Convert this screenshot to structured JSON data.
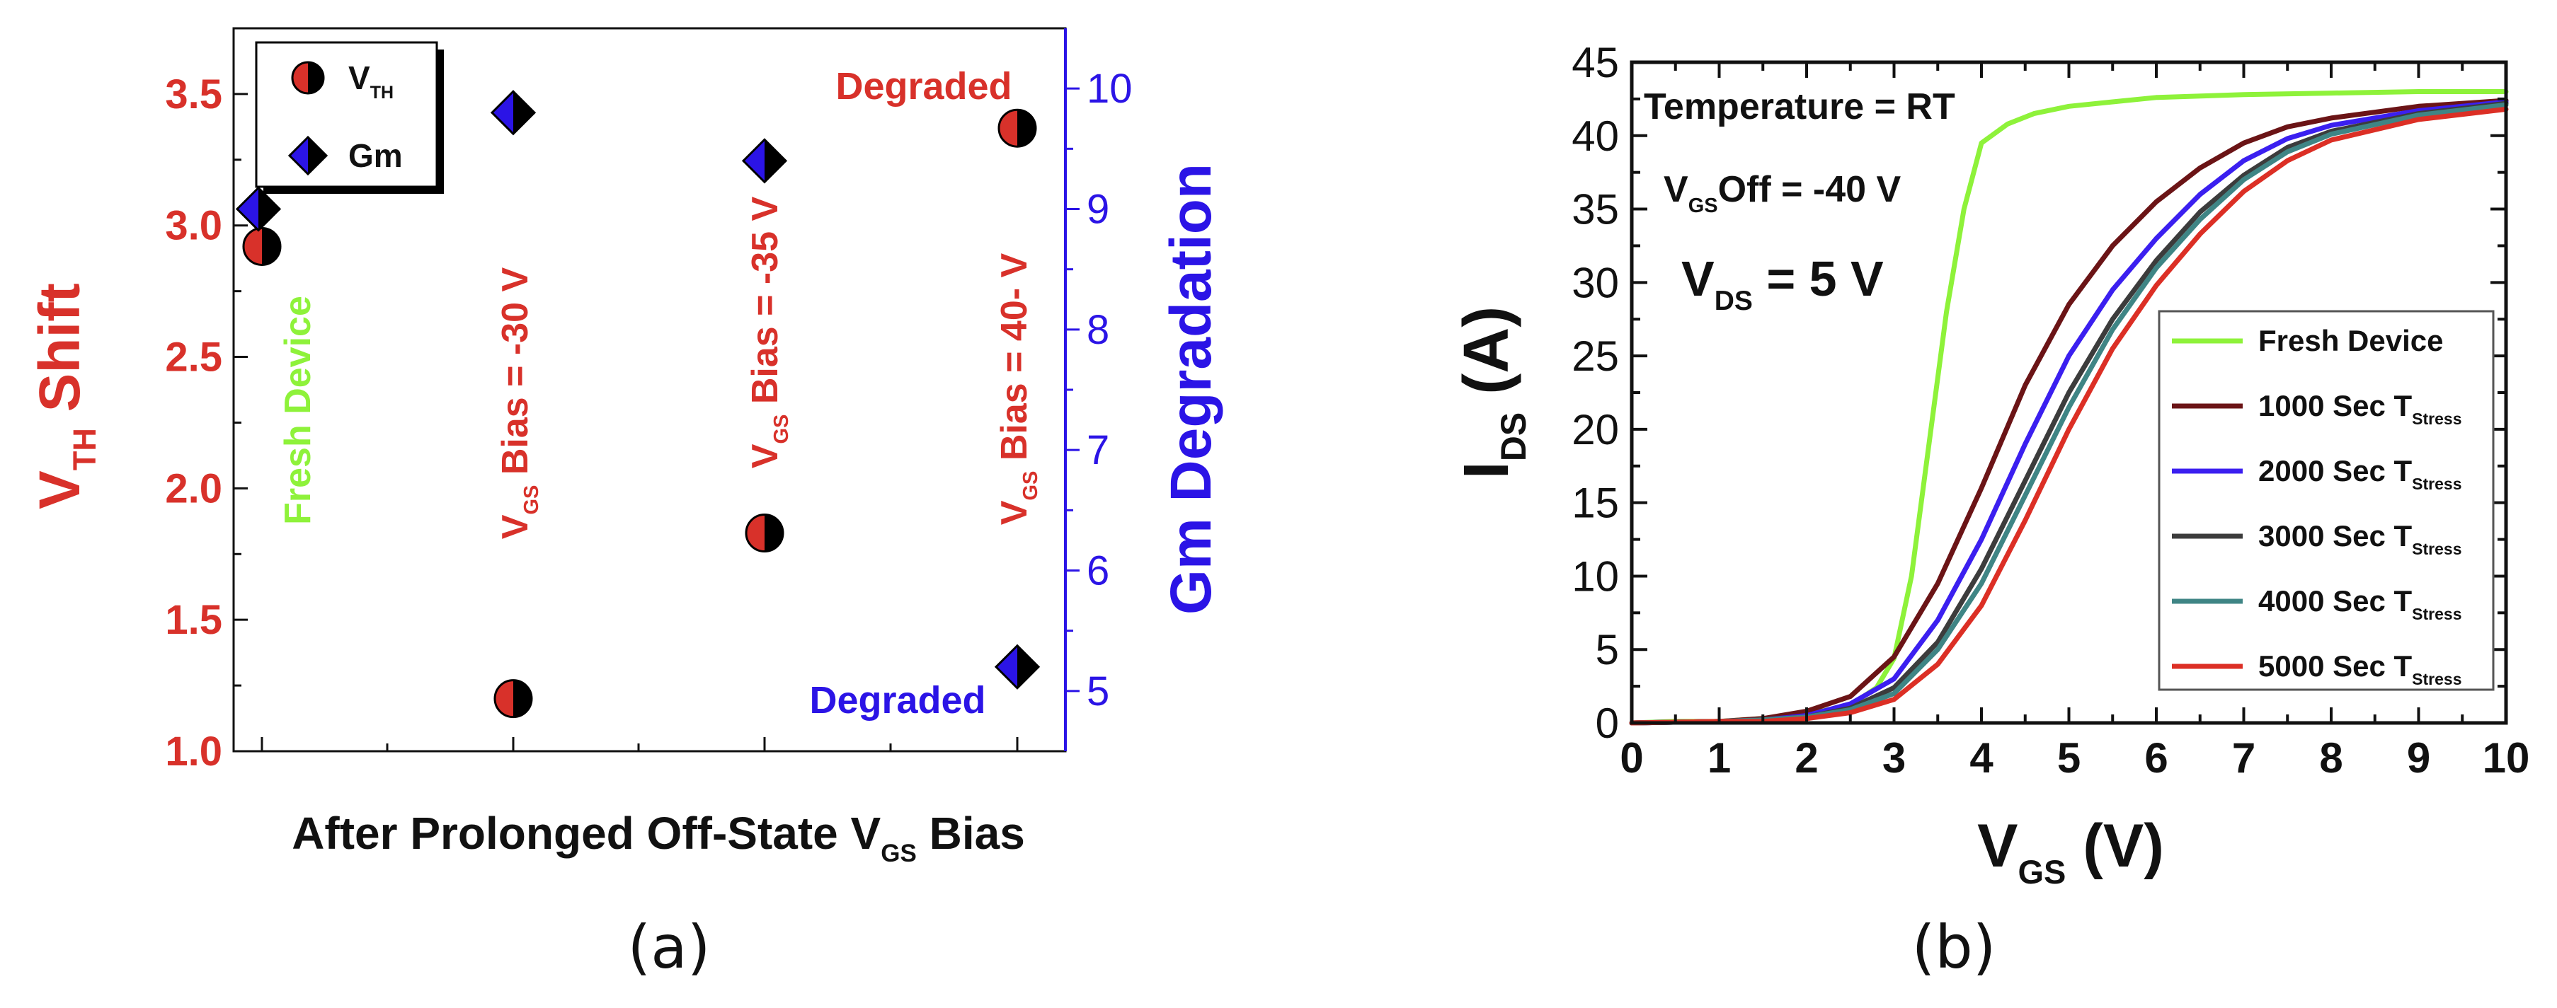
{
  "colors": {
    "red": "#d8312a",
    "blue": "#2b14e6",
    "green": "#8ef23a",
    "ink": "#111111",
    "fresh": "#8ef23a",
    "s1000": "#6b1416",
    "s2000": "#3b1ff0",
    "s3000": "#3c3c3c",
    "s4000": "#3f8585",
    "s5000": "#dc2f25"
  },
  "chart_data": [
    {
      "panel_label": "(a)",
      "type": "scatter",
      "xlabel": {
        "main": "After Prolonged Off-State V",
        "sub": "GS",
        "tail": " Bias"
      },
      "ylabel_left": {
        "main": "V",
        "sub": "TH",
        "tail": " Shift"
      },
      "ylabel_right": "Gm Degradation",
      "ylim_left": [
        1.0,
        3.75
      ],
      "ylim_right": [
        4.5,
        10.5
      ],
      "yticks_left": [
        "1.0",
        "1.5",
        "2.0",
        "2.5",
        "3.0",
        "3.5"
      ],
      "yticks_right": [
        "5",
        "6",
        "7",
        "8",
        "9",
        "10"
      ],
      "categories": [
        "Fresh Device",
        "VGS Bias = -30 V",
        "VGS Bias = -35 V",
        "VGS Bias = 40- V"
      ],
      "legend": [
        {
          "name": "V",
          "sub": "TH",
          "marker": "circle"
        },
        {
          "name": "Gm",
          "sub": "",
          "marker": "diamond"
        }
      ],
      "series": [
        {
          "name": "VTH",
          "axis": "left",
          "values": [
            2.92,
            1.2,
            1.83,
            3.37
          ]
        },
        {
          "name": "Gm",
          "axis": "right",
          "values": [
            9.0,
            9.8,
            9.4,
            5.2
          ]
        }
      ],
      "annotations": [
        {
          "text": "Fresh Device",
          "color": "green"
        },
        {
          "text": "V",
          "sub": "GS",
          "tail": " Bias = -30 V",
          "color": "red"
        },
        {
          "text": "V",
          "sub": "GS",
          "tail": " Bias = -35 V",
          "color": "red"
        },
        {
          "text": "V",
          "sub": "GS",
          "tail": " Bias = 40- V",
          "color": "red"
        },
        {
          "text": "Degraded",
          "color": "red"
        },
        {
          "text": "Degraded",
          "color": "blue"
        }
      ]
    },
    {
      "panel_label": "(b)",
      "type": "line",
      "xlabel": {
        "main": "V",
        "sub": "GS",
        "tail": " (V)"
      },
      "ylabel": {
        "main": "I",
        "sub": "DS",
        "tail": " (A)"
      },
      "xlim": [
        0,
        10
      ],
      "ylim": [
        0,
        45
      ],
      "xticks": [
        "0",
        "1",
        "2",
        "3",
        "4",
        "5",
        "6",
        "7",
        "8",
        "9",
        "10"
      ],
      "yticks": [
        "0",
        "5",
        "10",
        "15",
        "20",
        "25",
        "30",
        "35",
        "40",
        "45"
      ],
      "annotations": [
        {
          "text": "Temperature = RT"
        },
        {
          "text": "V",
          "sub": "GS",
          "tail": "Off = -40 V"
        },
        {
          "text": "V",
          "sub": "DS",
          "tail": " = 5 V"
        }
      ],
      "legend_placement": "right",
      "series": [
        {
          "name": "Fresh Device",
          "sub": "",
          "color_key": "fresh",
          "x": [
            0,
            0.5,
            1,
            1.5,
            2,
            2.5,
            2.8,
            3.0,
            3.2,
            3.4,
            3.6,
            3.8,
            4.0,
            4.3,
            4.6,
            5.0,
            5.5,
            6.0,
            7.0,
            8.0,
            9.0,
            10.0
          ],
          "y": [
            0.0,
            0.1,
            0.1,
            0.3,
            0.6,
            1.2,
            2.4,
            4.4,
            10.0,
            19.0,
            28.0,
            35.0,
            39.5,
            40.8,
            41.5,
            42.0,
            42.3,
            42.6,
            42.8,
            42.9,
            43.0,
            43.0
          ]
        },
        {
          "name": "1000 Sec T",
          "sub": "Stress",
          "color_key": "s1000",
          "x": [
            0,
            1,
            1.5,
            2,
            2.5,
            3.0,
            3.5,
            4.0,
            4.5,
            5.0,
            5.5,
            6.0,
            6.5,
            7.0,
            7.5,
            8.0,
            9.0,
            10.0
          ],
          "y": [
            0.0,
            0.1,
            0.3,
            0.8,
            1.8,
            4.5,
            9.5,
            16.0,
            23.0,
            28.5,
            32.5,
            35.5,
            37.8,
            39.5,
            40.6,
            41.2,
            42.0,
            42.4
          ]
        },
        {
          "name": "2000 Sec T",
          "sub": "Stress",
          "color_key": "s2000",
          "x": [
            0,
            1,
            1.5,
            2,
            2.5,
            3.0,
            3.5,
            4.0,
            4.5,
            5.0,
            5.5,
            6.0,
            6.5,
            7.0,
            7.5,
            8.0,
            9.0,
            10.0
          ],
          "y": [
            0.0,
            0.1,
            0.2,
            0.5,
            1.3,
            3.0,
            7.0,
            12.5,
            19.0,
            25.0,
            29.5,
            33.0,
            36.0,
            38.3,
            39.8,
            40.7,
            41.7,
            42.3
          ]
        },
        {
          "name": "3000 Sec T",
          "sub": "Stress",
          "color_key": "s3000",
          "x": [
            0,
            1,
            1.5,
            2,
            2.5,
            3.0,
            3.5,
            4.0,
            4.5,
            5.0,
            5.5,
            6.0,
            6.5,
            7.0,
            7.5,
            8.0,
            9.0,
            10.0
          ],
          "y": [
            0.0,
            0.1,
            0.2,
            0.4,
            1.0,
            2.4,
            5.5,
            10.5,
            16.5,
            22.5,
            27.5,
            31.5,
            34.8,
            37.3,
            39.2,
            40.3,
            41.5,
            42.2
          ]
        },
        {
          "name": "4000 Sec T",
          "sub": "Stress",
          "color_key": "s4000",
          "x": [
            0,
            1,
            1.5,
            2,
            2.5,
            3.0,
            3.5,
            4.0,
            4.5,
            5.0,
            5.5,
            6.0,
            6.5,
            7.0,
            7.5,
            8.0,
            9.0,
            10.0
          ],
          "y": [
            0.0,
            0.1,
            0.2,
            0.4,
            0.9,
            2.0,
            5.0,
            9.5,
            15.5,
            21.5,
            26.8,
            31.0,
            34.3,
            37.0,
            38.9,
            40.1,
            41.4,
            42.1
          ]
        },
        {
          "name": "5000 Sec T",
          "sub": "Stress",
          "color_key": "s5000",
          "x": [
            0,
            1,
            1.5,
            2,
            2.5,
            3.0,
            3.5,
            4.0,
            4.5,
            5.0,
            5.5,
            6.0,
            6.5,
            7.0,
            7.5,
            8.0,
            9.0,
            10.0
          ],
          "y": [
            0.0,
            0.1,
            0.1,
            0.3,
            0.7,
            1.6,
            4.0,
            8.0,
            13.8,
            20.0,
            25.5,
            29.8,
            33.3,
            36.2,
            38.3,
            39.7,
            41.1,
            41.8
          ]
        }
      ]
    }
  ]
}
